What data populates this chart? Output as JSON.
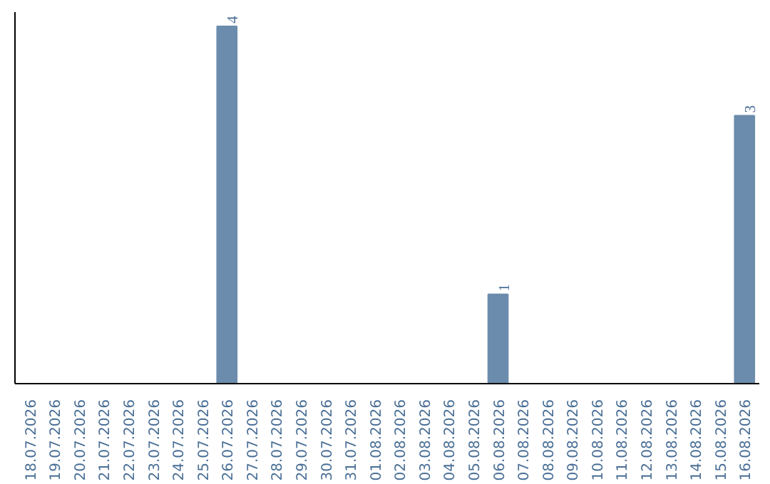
{
  "chart_data": {
    "type": "bar",
    "categories": [
      "18.07.2026",
      "19.07.2026",
      "20.07.2026",
      "21.07.2026",
      "22.07.2026",
      "23.07.2026",
      "24.07.2026",
      "25.07.2026",
      "26.07.2026",
      "27.07.2026",
      "28.07.2026",
      "29.07.2026",
      "30.07.2026",
      "31.07.2026",
      "01.08.2026",
      "02.08.2026",
      "03.08.2026",
      "04.08.2026",
      "05.08.2026",
      "06.08.2026",
      "07.08.2026",
      "08.08.2026",
      "09.08.2026",
      "10.08.2026",
      "11.08.2026",
      "12.08.2026",
      "13.08.2026",
      "14.08.2026",
      "15.08.2026",
      "16.08.2026"
    ],
    "values": [
      0,
      0,
      0,
      0,
      0,
      0,
      0,
      0,
      4,
      0,
      0,
      0,
      0,
      0,
      0,
      0,
      0,
      0,
      0,
      1,
      0,
      0,
      0,
      0,
      0,
      0,
      0,
      0,
      0,
      3
    ],
    "value_labels": [
      null,
      null,
      null,
      null,
      null,
      null,
      null,
      null,
      "4",
      null,
      null,
      null,
      null,
      null,
      null,
      null,
      null,
      null,
      null,
      "1",
      null,
      null,
      null,
      null,
      null,
      null,
      null,
      null,
      null,
      "3"
    ],
    "color": "#6b8cac",
    "grid": false
  }
}
